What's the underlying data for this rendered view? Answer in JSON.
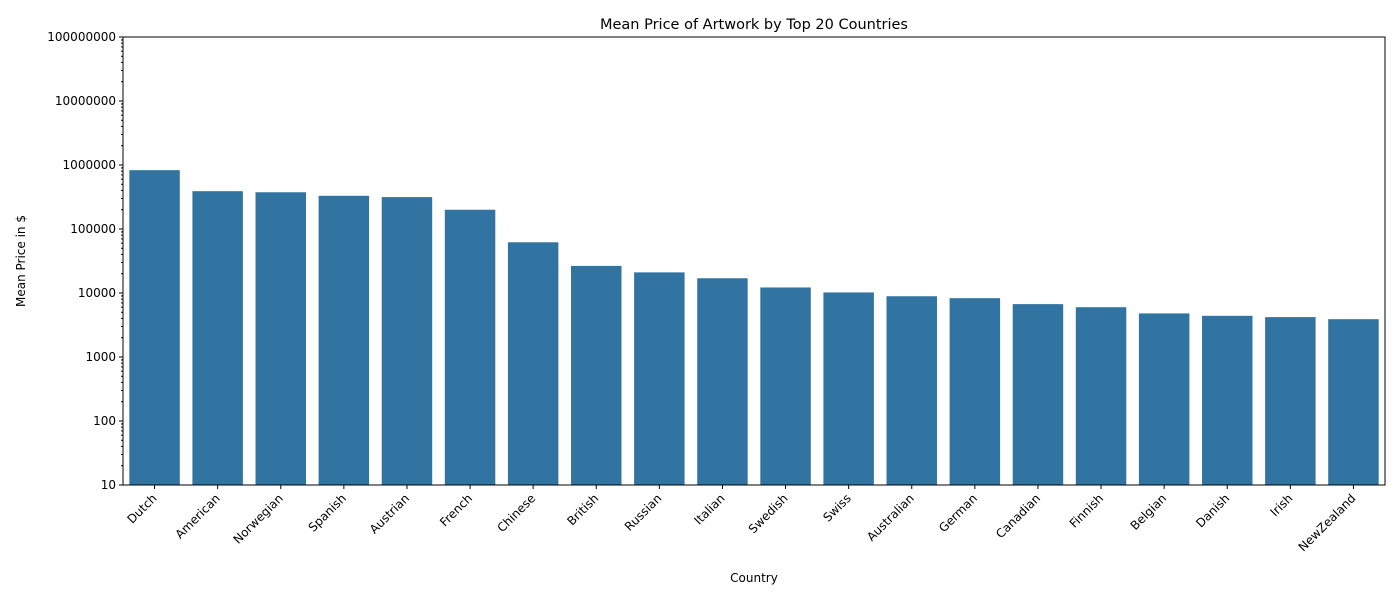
{
  "chart_data": {
    "type": "bar",
    "title": "Mean Price of Artwork by Top 20 Countries",
    "xlabel": "Country",
    "ylabel": "Mean Price in $",
    "yscale": "log",
    "ylim": [
      10,
      100000000
    ],
    "yticks": [
      "10",
      "100",
      "1000",
      "10000",
      "100000",
      "1000000",
      "10000000",
      "100000000"
    ],
    "grid": false,
    "bar_color": "#3274a1",
    "categories": [
      "Dutch",
      "American",
      "Norwegian",
      "Spanish",
      "Austrian",
      "French",
      "Chinese",
      "British",
      "Russian",
      "Italian",
      "Swedish",
      "Swiss",
      "Australian",
      "German",
      "Canadian",
      "Finnish",
      "Belgian",
      "Danish",
      "Irish",
      "NewZealand"
    ],
    "values": [
      830000,
      390000,
      375000,
      330000,
      315000,
      200000,
      62000,
      26500,
      21000,
      17000,
      12200,
      10200,
      8900,
      8300,
      6700,
      6000,
      4800,
      4400,
      4200,
      3900
    ]
  }
}
